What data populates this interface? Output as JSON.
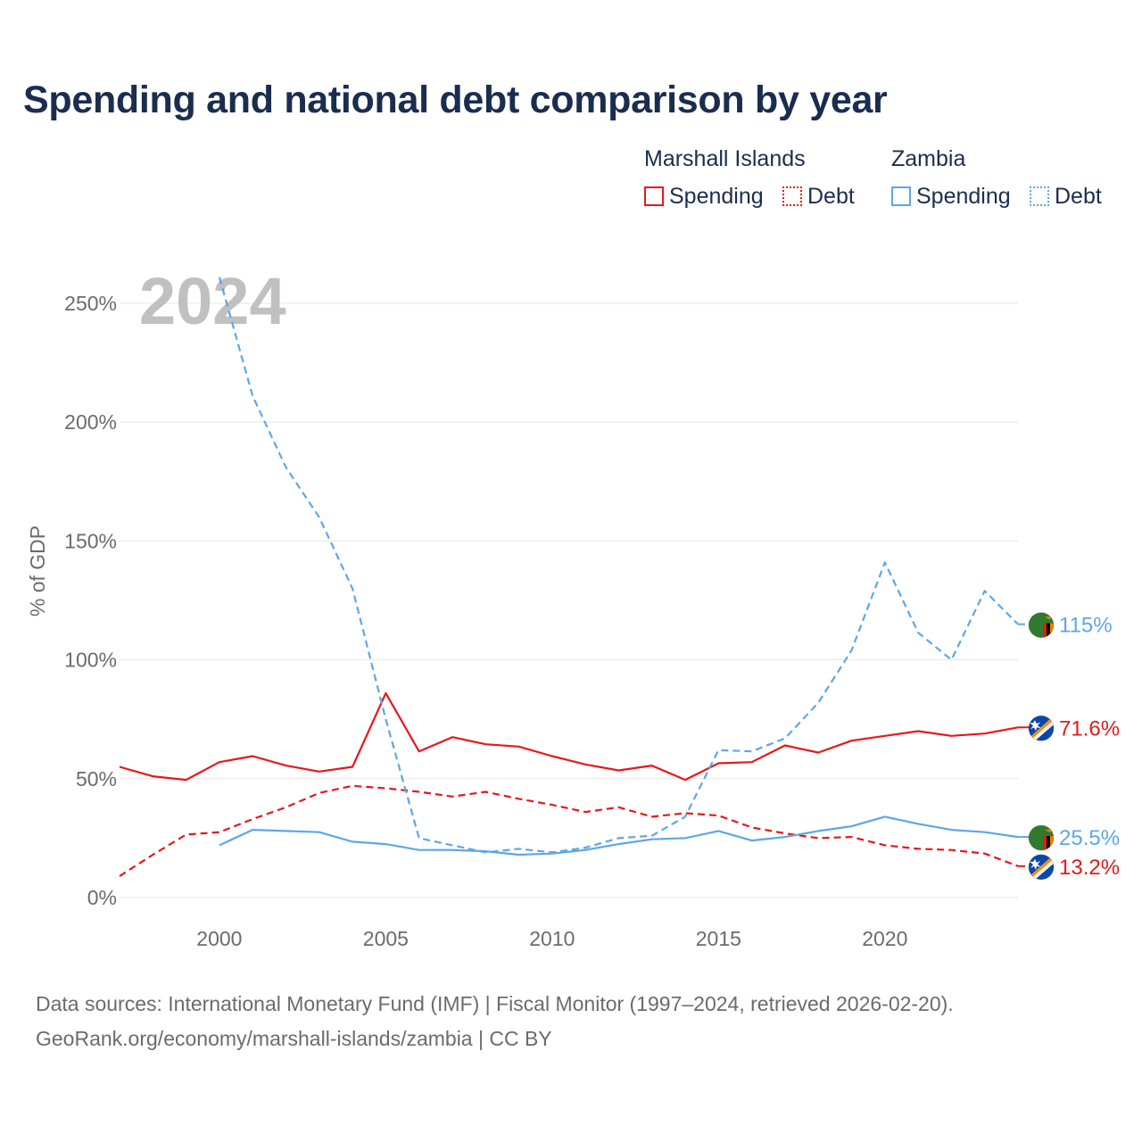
{
  "title": "Spending and national debt comparison by year",
  "legend": {
    "groups": [
      {
        "name": "Marshall Islands",
        "spending_label": "Spending",
        "debt_label": "Debt",
        "color": "#e8171b"
      },
      {
        "name": "Zambia",
        "spending_label": "Spending",
        "debt_label": "Debt",
        "color": "#5ea6e8"
      }
    ]
  },
  "year_overlay": "2024",
  "sources": {
    "line1": "Data sources: International Monetary Fund (IMF) | Fiscal Monitor (1997–2024, retrieved 2026-02-20).",
    "line2": "GeoRank.org/economy/marshall-islands/zambia | CC BY"
  },
  "colors": {
    "title": "#1b2d4f",
    "grid": "#e6e6e6",
    "axis_text": "#6b6b6b",
    "overlay": "#c0c0c0"
  },
  "chart_data": {
    "type": "line",
    "title": "Spending and national debt comparison by year",
    "xlabel": "",
    "ylabel": "% of GDP",
    "xlim": [
      1997,
      2024
    ],
    "ylim": [
      0,
      260
    ],
    "yticks": [
      0,
      50,
      100,
      150,
      200,
      250
    ],
    "ytick_labels": [
      "0%",
      "50%",
      "100%",
      "150%",
      "200%",
      "250%"
    ],
    "xticks": [
      2000,
      2005,
      2010,
      2015,
      2020
    ],
    "xtick_labels": [
      "2000",
      "2005",
      "2010",
      "2015",
      "2020"
    ],
    "grid": true,
    "series": [
      {
        "name": "Marshall Islands Spending",
        "country": "Marshall Islands",
        "metric": "Spending",
        "style": "solid",
        "color": "#e8171b",
        "end_label": "71.6%",
        "flag": "marshall-islands-flag-icon",
        "x": [
          1997,
          1998,
          1999,
          2000,
          2001,
          2002,
          2003,
          2004,
          2005,
          2006,
          2007,
          2008,
          2009,
          2010,
          2011,
          2012,
          2013,
          2014,
          2015,
          2016,
          2017,
          2018,
          2019,
          2020,
          2021,
          2022,
          2023,
          2024
        ],
        "values": [
          55,
          51,
          49.5,
          57,
          59.5,
          55.5,
          53,
          55,
          86,
          61.5,
          67.5,
          64.5,
          63.5,
          59.5,
          56,
          53.5,
          55.5,
          49.5,
          56.5,
          57,
          64,
          61,
          66,
          68,
          70,
          68,
          69,
          71.6
        ]
      },
      {
        "name": "Marshall Islands Debt",
        "country": "Marshall Islands",
        "metric": "Debt",
        "style": "dashed",
        "color": "#e8171b",
        "end_label": "13.2%",
        "flag": "marshall-islands-flag-icon",
        "x": [
          1997,
          1998,
          1999,
          2000,
          2001,
          2002,
          2003,
          2004,
          2005,
          2006,
          2007,
          2008,
          2009,
          2010,
          2011,
          2012,
          2013,
          2014,
          2015,
          2016,
          2017,
          2018,
          2019,
          2020,
          2021,
          2022,
          2023,
          2024
        ],
        "values": [
          9,
          18,
          26.5,
          27.5,
          33,
          38,
          44,
          47,
          46,
          44.5,
          42.5,
          44.5,
          41.5,
          39,
          36,
          38,
          34,
          35.5,
          34.5,
          29.5,
          27,
          25,
          25.5,
          22,
          20.5,
          20,
          18.5,
          13.2
        ]
      },
      {
        "name": "Zambia Spending",
        "country": "Zambia",
        "metric": "Spending",
        "style": "solid",
        "color": "#5ea6e8",
        "end_label": "25.5%",
        "flag": "zambia-flag-icon",
        "x": [
          2000,
          2001,
          2002,
          2003,
          2004,
          2005,
          2006,
          2007,
          2008,
          2009,
          2010,
          2011,
          2012,
          2013,
          2014,
          2015,
          2016,
          2017,
          2018,
          2019,
          2020,
          2021,
          2022,
          2023,
          2024
        ],
        "values": [
          22,
          28.5,
          28,
          27.5,
          23.5,
          22.5,
          20,
          20,
          19.5,
          18,
          18.5,
          20,
          22.5,
          24.5,
          25,
          28,
          24,
          25.5,
          28,
          30,
          34,
          31,
          28.5,
          27.5,
          25.5
        ]
      },
      {
        "name": "Zambia Debt",
        "country": "Zambia",
        "metric": "Debt",
        "style": "dashed",
        "color": "#5ea6e8",
        "end_label": "115%",
        "flag": "zambia-flag-icon",
        "x": [
          2000,
          2001,
          2002,
          2003,
          2004,
          2005,
          2006,
          2007,
          2008,
          2009,
          2010,
          2011,
          2012,
          2013,
          2014,
          2015,
          2016,
          2017,
          2018,
          2019,
          2020,
          2021,
          2022,
          2023,
          2024
        ],
        "values": [
          261,
          211,
          181,
          160,
          130,
          75,
          25,
          22,
          19,
          20.5,
          19,
          21,
          25,
          26,
          34,
          62,
          61.5,
          67,
          82,
          104,
          141,
          111.5,
          100,
          129,
          115
        ]
      }
    ]
  }
}
